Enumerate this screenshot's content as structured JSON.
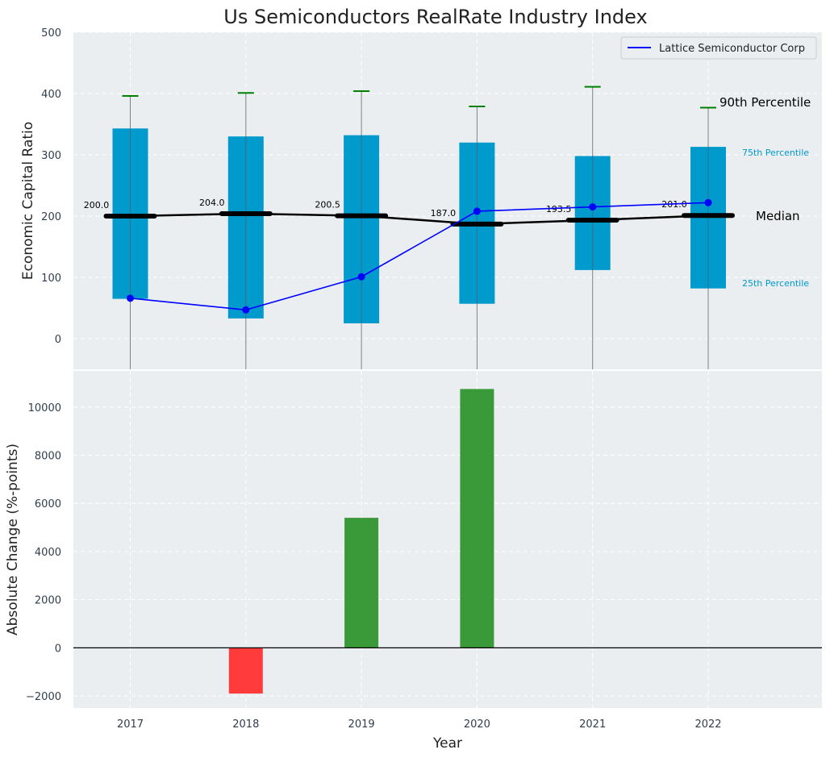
{
  "chart_data": [
    {
      "type": "box",
      "title": "Us Semiconductors RealRate Industry Index",
      "ylabel": "Economic Capital Ratio",
      "ylim": [
        -50,
        500
      ],
      "yticks": [
        0,
        100,
        200,
        300,
        400,
        500
      ],
      "categories": [
        "2017",
        "2018",
        "2019",
        "2020",
        "2021",
        "2022"
      ],
      "p25": [
        65,
        33,
        25,
        57,
        112,
        82
      ],
      "p75": [
        343,
        330,
        332,
        320,
        298,
        313
      ],
      "p90": [
        396,
        401,
        404,
        379,
        411,
        377
      ],
      "median": [
        200.0,
        204.0,
        200.5,
        187.0,
        193.5,
        201.0
      ],
      "median_labels": [
        "200.0",
        "204.0",
        "200.5",
        "187.0",
        "193.5",
        "201.0"
      ],
      "series": [
        {
          "name": "Lattice Semiconductor Corp",
          "values": [
            66,
            47,
            101,
            208,
            215,
            222
          ]
        }
      ],
      "annotations": {
        "p90": "90th Percentile",
        "p75": "75th Percentile",
        "median": "Median",
        "p25": "25th Percentile"
      },
      "grid": true,
      "legend": "top-right"
    },
    {
      "type": "bar",
      "xlabel": "Year",
      "ylabel": "Absolute Change (%-points)",
      "ylim": [
        -2500,
        11500
      ],
      "yticks": [
        -2000,
        0,
        2000,
        4000,
        6000,
        8000,
        10000
      ],
      "ytick_labels": [
        "−2000",
        "0",
        "2000",
        "4000",
        "6000",
        "8000",
        "10000"
      ],
      "categories": [
        "2017",
        "2018",
        "2019",
        "2020",
        "2021",
        "2022"
      ],
      "values": [
        0,
        -1900,
        5400,
        10750,
        0,
        0
      ],
      "grid": true
    }
  ],
  "colors": {
    "background": "#eaeef0",
    "box": "#009acd",
    "whisker": "#808080",
    "cap": "#008000",
    "median": "#000000",
    "series": "#0000ff",
    "positive": "#3a9a3a",
    "negative": "#ff3b3b",
    "annotation_box": "#009acd",
    "text": "#2f3e4e"
  }
}
